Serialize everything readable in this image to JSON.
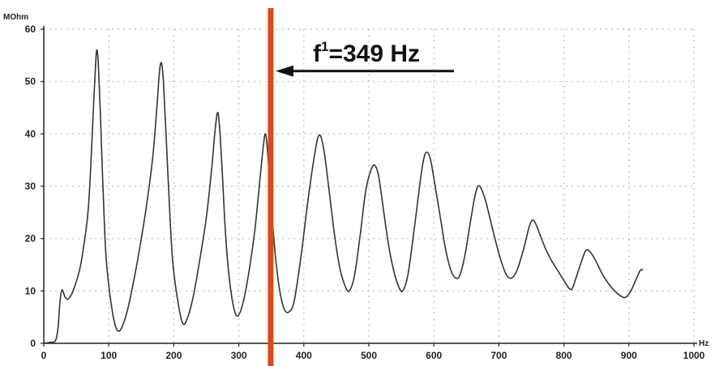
{
  "chart_data": {
    "type": "line",
    "title": "",
    "xlabel": "",
    "ylabel": "",
    "x_unit": "Hz",
    "y_unit": "MOhm",
    "xlim": [
      0,
      1000
    ],
    "ylim": [
      0,
      60
    ],
    "xticks": [
      0,
      100,
      200,
      300,
      400,
      500,
      600,
      700,
      800,
      900,
      1000
    ],
    "yticks": [
      0,
      10,
      20,
      30,
      40,
      50,
      60
    ],
    "grid": true,
    "series": [
      {
        "name": "",
        "color": "#333333",
        "points": [
          [
            0,
            0
          ],
          [
            10,
            0.2
          ],
          [
            18,
            0.5
          ],
          [
            22,
            3
          ],
          [
            25,
            8
          ],
          [
            28,
            10.2
          ],
          [
            33,
            8.8
          ],
          [
            38,
            8.5
          ],
          [
            45,
            10
          ],
          [
            55,
            14
          ],
          [
            62,
            19
          ],
          [
            68,
            25
          ],
          [
            72,
            33
          ],
          [
            76,
            44
          ],
          [
            80,
            54
          ],
          [
            82,
            56
          ],
          [
            84,
            53
          ],
          [
            87,
            44
          ],
          [
            91,
            30
          ],
          [
            95,
            18
          ],
          [
            100,
            11
          ],
          [
            107,
            5
          ],
          [
            113,
            2.5
          ],
          [
            120,
            3
          ],
          [
            130,
            7
          ],
          [
            140,
            13
          ],
          [
            150,
            20
          ],
          [
            160,
            28
          ],
          [
            168,
            36
          ],
          [
            174,
            45
          ],
          [
            178,
            52
          ],
          [
            181,
            53.5
          ],
          [
            184,
            50
          ],
          [
            188,
            40
          ],
          [
            193,
            27
          ],
          [
            198,
            16
          ],
          [
            205,
            9
          ],
          [
            213,
            4
          ],
          [
            220,
            4.5
          ],
          [
            230,
            9
          ],
          [
            240,
            16
          ],
          [
            250,
            24
          ],
          [
            258,
            33
          ],
          [
            263,
            40
          ],
          [
            267,
            44
          ],
          [
            270,
            42
          ],
          [
            274,
            34
          ],
          [
            279,
            22
          ],
          [
            284,
            14
          ],
          [
            291,
            7.5
          ],
          [
            298,
            5.2
          ],
          [
            307,
            8
          ],
          [
            316,
            14
          ],
          [
            325,
            22
          ],
          [
            333,
            32
          ],
          [
            338,
            38
          ],
          [
            341,
            40
          ],
          [
            344,
            37
          ],
          [
            349,
            28
          ],
          [
            356,
            17
          ],
          [
            363,
            10
          ],
          [
            370,
            6.5
          ],
          [
            377,
            6
          ],
          [
            385,
            8
          ],
          [
            395,
            16
          ],
          [
            405,
            26
          ],
          [
            414,
            34
          ],
          [
            421,
            39
          ],
          [
            426,
            39.5
          ],
          [
            432,
            36
          ],
          [
            440,
            28
          ],
          [
            448,
            20
          ],
          [
            456,
            14
          ],
          [
            464,
            10.8
          ],
          [
            470,
            10
          ],
          [
            478,
            13
          ],
          [
            487,
            21
          ],
          [
            495,
            29
          ],
          [
            503,
            33
          ],
          [
            509,
            34
          ],
          [
            515,
            32
          ],
          [
            522,
            26
          ],
          [
            530,
            19
          ],
          [
            538,
            14
          ],
          [
            546,
            10.8
          ],
          [
            552,
            10
          ],
          [
            560,
            13
          ],
          [
            570,
            22
          ],
          [
            578,
            30
          ],
          [
            584,
            35
          ],
          [
            589,
            36.5
          ],
          [
            595,
            35
          ],
          [
            602,
            30
          ],
          [
            610,
            24
          ],
          [
            618,
            18
          ],
          [
            626,
            14
          ],
          [
            633,
            12.5
          ],
          [
            640,
            13
          ],
          [
            648,
            17
          ],
          [
            656,
            23
          ],
          [
            663,
            28
          ],
          [
            668,
            30
          ],
          [
            673,
            29.5
          ],
          [
            680,
            27
          ],
          [
            688,
            23
          ],
          [
            696,
            19
          ],
          [
            704,
            15.5
          ],
          [
            712,
            13
          ],
          [
            720,
            12.5
          ],
          [
            728,
            14
          ],
          [
            738,
            18
          ],
          [
            746,
            22
          ],
          [
            751,
            23.5
          ],
          [
            756,
            23
          ],
          [
            764,
            20.5
          ],
          [
            772,
            18
          ],
          [
            780,
            16
          ],
          [
            790,
            14
          ],
          [
            800,
            12
          ],
          [
            808,
            10.5
          ],
          [
            813,
            10.5
          ],
          [
            820,
            13
          ],
          [
            828,
            16
          ],
          [
            834,
            17.8
          ],
          [
            840,
            17.5
          ],
          [
            848,
            16
          ],
          [
            858,
            13.5
          ],
          [
            868,
            11.5
          ],
          [
            878,
            10
          ],
          [
            888,
            9
          ],
          [
            895,
            8.8
          ],
          [
            903,
            10
          ],
          [
            912,
            12.5
          ],
          [
            918,
            14
          ],
          [
            922,
            14
          ]
        ]
      }
    ],
    "annotations": [
      {
        "type": "vertical-line",
        "x": 349,
        "color": "#d94a1c"
      },
      {
        "type": "arrow-label",
        "label_main": "f",
        "label_sup": "1",
        "label_rest": "=349 Hz",
        "points_to_x": 349,
        "points_to_y": 52
      }
    ]
  }
}
